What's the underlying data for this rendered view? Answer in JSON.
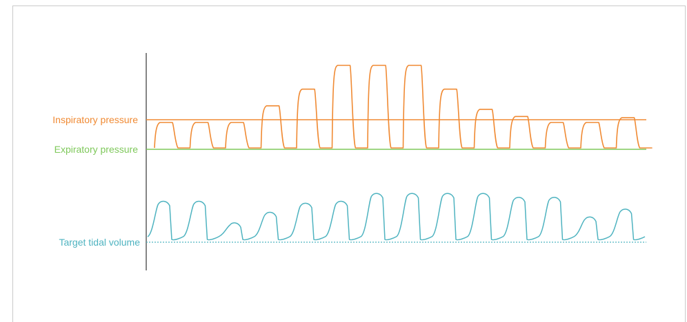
{
  "labels": {
    "inspiratory_pressure": "Inspiratory pressure",
    "expiratory_pressure": "Expiratory pressure",
    "target_tidal_volume": "Target tidal volume"
  },
  "colors": {
    "pressure": "#f08a33",
    "expiratory": "#7ec85a",
    "volume": "#4eb3c0",
    "axis": "#333333",
    "frame": "#c9c9c9"
  },
  "pressure_breath_levels": [
    1,
    1,
    1,
    2.4,
    3.8,
    5.8,
    5.8,
    5.8,
    3.8,
    2.1,
    1.5,
    1,
    1,
    1.4
  ],
  "volume_breath_levels": [
    1.0,
    1.0,
    0.45,
    0.72,
    0.95,
    1.0,
    1.2,
    1.2,
    1.2,
    1.2,
    1.1,
    1.1,
    0.6,
    0.8
  ]
}
